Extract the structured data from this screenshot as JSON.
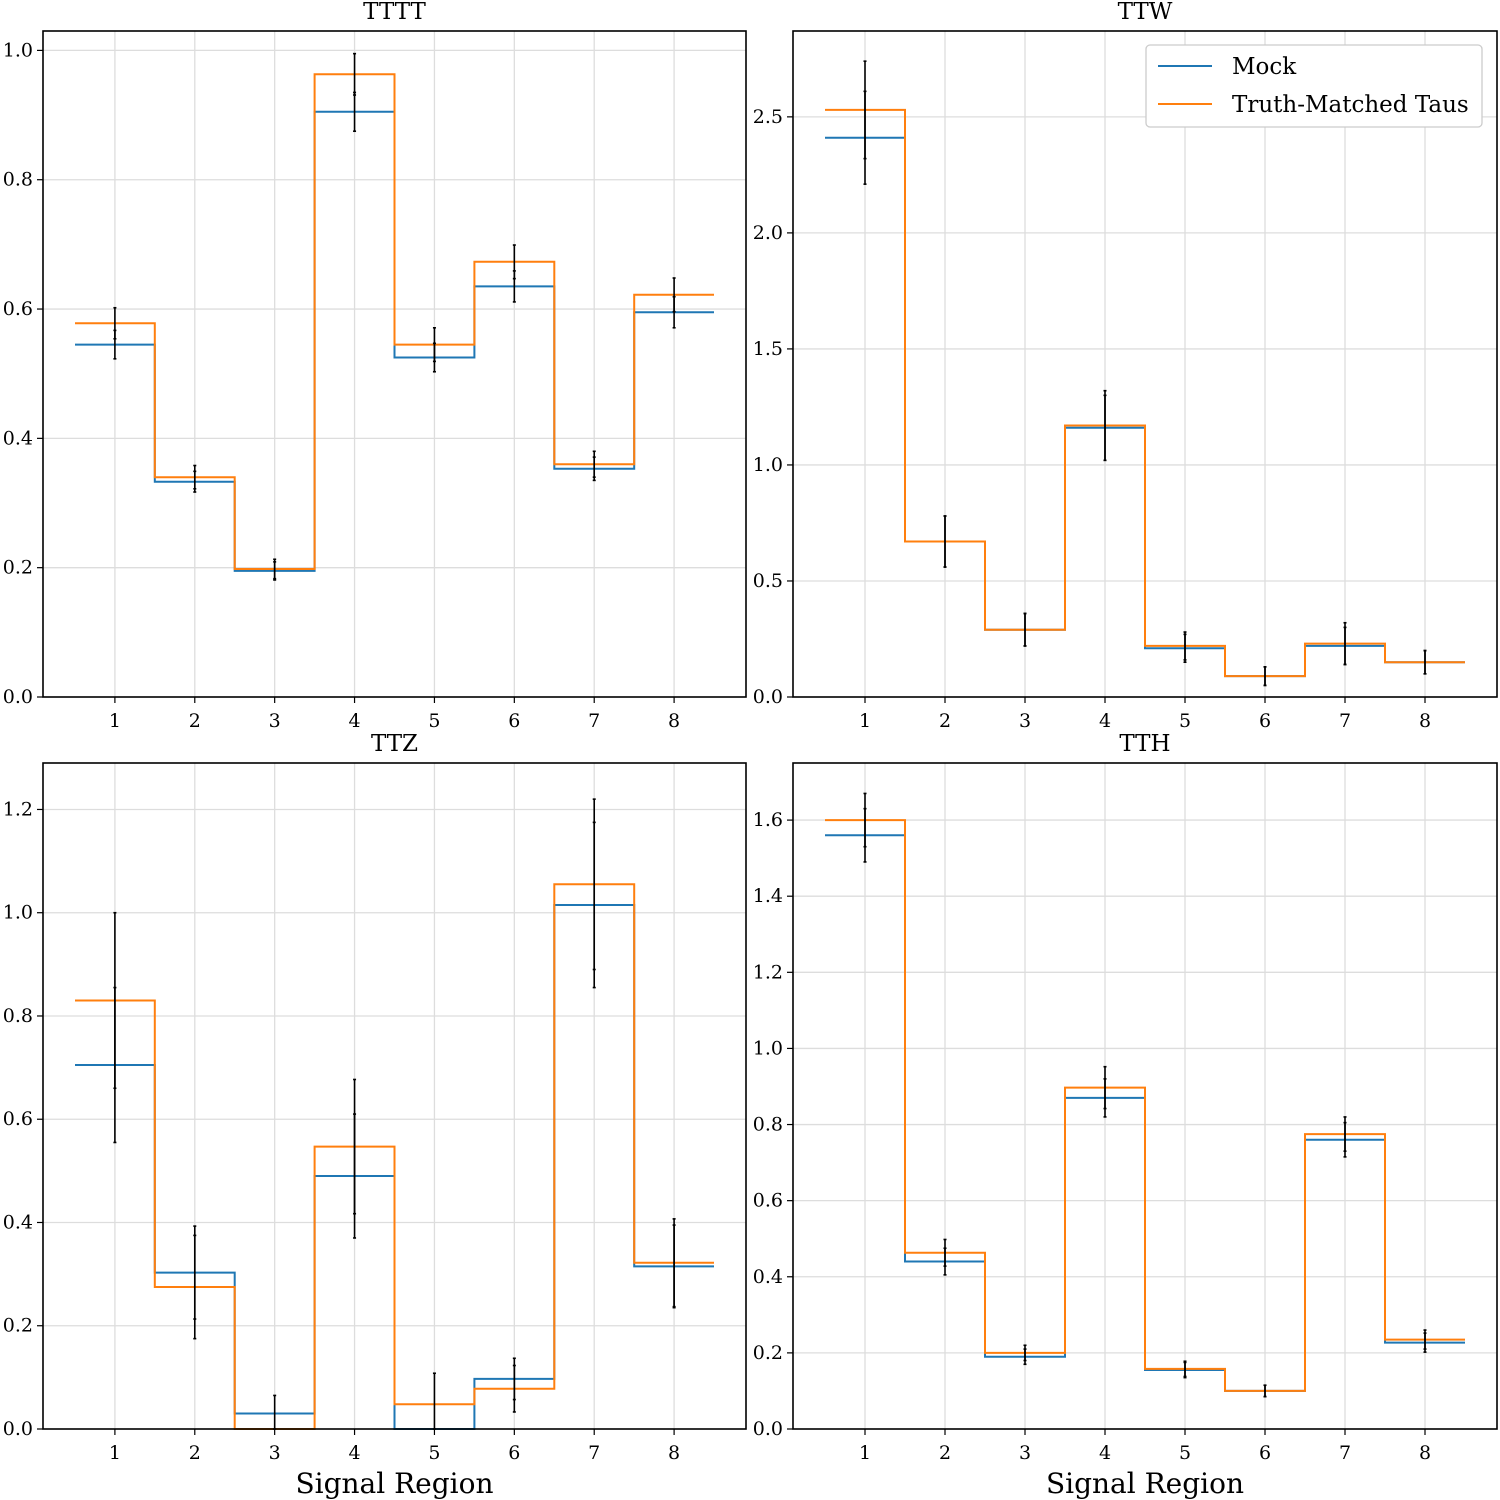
{
  "colors": {
    "mock": "#1f77b4",
    "truth": "#ff7f0e",
    "errorbar": "#000000",
    "grid": "#dddddd"
  },
  "legend": {
    "entries": [
      "Mock",
      "Truth-Matched Taus"
    ],
    "placement": "upper right of TTW panel"
  },
  "chart_data": [
    {
      "type": "line",
      "drawstyle": "steps-mid",
      "title": "TTTT",
      "xlabel": "",
      "ylabel": "",
      "categories": [
        1,
        2,
        3,
        4,
        5,
        6,
        7,
        8
      ],
      "ylim": [
        0,
        1.03
      ],
      "yticks": [
        0.0,
        0.2,
        0.4,
        0.6,
        0.8,
        1.0
      ],
      "grid": true,
      "series": [
        {
          "name": "Mock",
          "values": [
            0.545,
            0.333,
            0.195,
            0.905,
            0.525,
            0.635,
            0.353,
            0.595
          ],
          "errors": [
            0.022,
            0.016,
            0.014,
            0.03,
            0.022,
            0.024,
            0.018,
            0.024
          ]
        },
        {
          "name": "Truth-Matched Taus",
          "values": [
            0.578,
            0.34,
            0.198,
            0.963,
            0.545,
            0.673,
            0.36,
            0.622
          ],
          "errors": [
            0.024,
            0.018,
            0.015,
            0.032,
            0.026,
            0.026,
            0.02,
            0.026
          ]
        }
      ]
    },
    {
      "type": "line",
      "drawstyle": "steps-mid",
      "title": "TTW",
      "xlabel": "",
      "ylabel": "",
      "categories": [
        1,
        2,
        3,
        4,
        5,
        6,
        7,
        8
      ],
      "ylim": [
        0,
        2.87
      ],
      "yticks": [
        0.0,
        0.5,
        1.0,
        1.5,
        2.0,
        2.5
      ],
      "grid": true,
      "legend": true,
      "series": [
        {
          "name": "Mock",
          "values": [
            2.41,
            0.67,
            0.29,
            1.16,
            0.21,
            0.09,
            0.22,
            0.15
          ],
          "errors": [
            0.2,
            0.11,
            0.07,
            0.14,
            0.06,
            0.04,
            0.08,
            0.05
          ]
        },
        {
          "name": "Truth-Matched Taus",
          "values": [
            2.53,
            0.67,
            0.29,
            1.17,
            0.22,
            0.09,
            0.23,
            0.15
          ],
          "errors": [
            0.21,
            0.11,
            0.07,
            0.15,
            0.06,
            0.04,
            0.09,
            0.05
          ]
        }
      ]
    },
    {
      "type": "line",
      "drawstyle": "steps-mid",
      "title": "TTZ",
      "xlabel": "Signal Region",
      "ylabel": "",
      "categories": [
        1,
        2,
        3,
        4,
        5,
        6,
        7,
        8
      ],
      "ylim": [
        0,
        1.29
      ],
      "yticks": [
        0.0,
        0.2,
        0.4,
        0.6,
        0.8,
        1.0,
        1.2
      ],
      "grid": true,
      "series": [
        {
          "name": "Mock",
          "values": [
            0.705,
            0.303,
            0.03,
            0.49,
            0.0,
            0.097,
            1.015,
            0.315
          ],
          "errors": [
            0.15,
            0.09,
            0.035,
            0.12,
            0.0,
            0.04,
            0.16,
            0.08
          ]
        },
        {
          "name": "Truth-Matched Taus",
          "values": [
            0.83,
            0.275,
            0.0,
            0.547,
            0.048,
            0.078,
            1.055,
            0.322
          ],
          "errors": [
            0.17,
            0.1,
            0.0,
            0.13,
            0.06,
            0.045,
            0.165,
            0.085
          ]
        }
      ]
    },
    {
      "type": "line",
      "drawstyle": "steps-mid",
      "title": "TTH",
      "xlabel": "Signal Region",
      "ylabel": "",
      "categories": [
        1,
        2,
        3,
        4,
        5,
        6,
        7,
        8
      ],
      "ylim": [
        0,
        1.75
      ],
      "yticks": [
        0.0,
        0.2,
        0.4,
        0.6,
        0.8,
        1.0,
        1.2,
        1.4,
        1.6
      ],
      "grid": true,
      "series": [
        {
          "name": "Mock",
          "values": [
            1.56,
            0.44,
            0.19,
            0.87,
            0.155,
            0.1,
            0.76,
            0.227
          ],
          "errors": [
            0.07,
            0.035,
            0.02,
            0.05,
            0.02,
            0.015,
            0.045,
            0.025
          ]
        },
        {
          "name": "Truth-Matched Taus",
          "values": [
            1.6,
            0.463,
            0.2,
            0.897,
            0.158,
            0.1,
            0.775,
            0.235
          ],
          "errors": [
            0.07,
            0.035,
            0.02,
            0.055,
            0.02,
            0.015,
            0.045,
            0.025
          ]
        }
      ]
    }
  ]
}
